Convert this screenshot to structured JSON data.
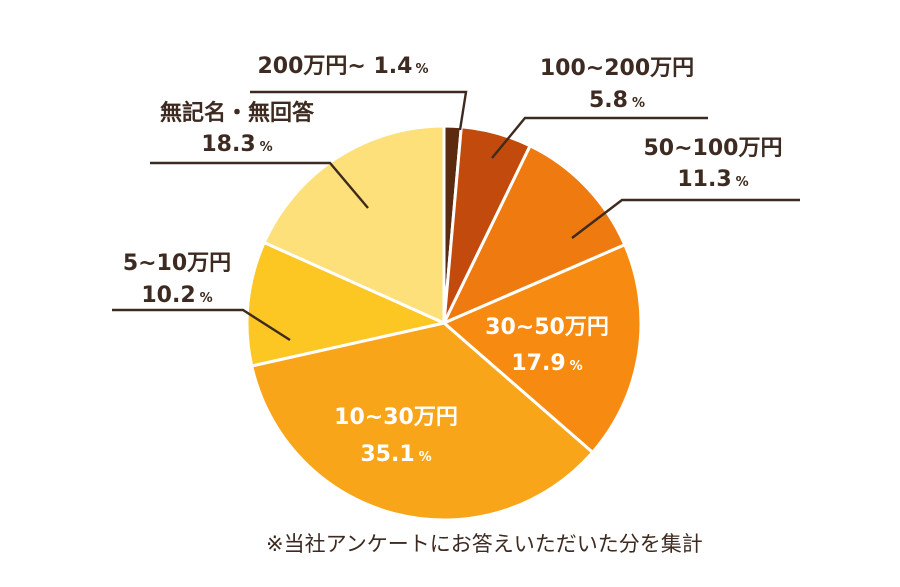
{
  "chart_data": {
    "type": "pie",
    "unit": "%",
    "slices": [
      {
        "label": "200万円~",
        "value": 1.4,
        "display": "1.4",
        "color": "#5c2a0e"
      },
      {
        "label": "100~200万円",
        "value": 5.8,
        "display": "5.8",
        "color": "#c24a0c"
      },
      {
        "label": "50~100万円",
        "value": 11.3,
        "display": "11.3",
        "color": "#ef7a10"
      },
      {
        "label": "30~50万円",
        "value": 17.9,
        "display": "17.9",
        "color": "#f78b12"
      },
      {
        "label": "10~30万円",
        "value": 35.1,
        "display": "35.1",
        "color": "#f9a51a"
      },
      {
        "label": "5~10万円",
        "value": 10.2,
        "display": "10.2",
        "color": "#fcc623"
      },
      {
        "label": "無記名・無回答",
        "value": 18.3,
        "display": "18.3",
        "color": "#fde07a"
      }
    ]
  },
  "colors": {
    "text_dark": "#3d2a20",
    "text_white": "#ffffff",
    "leader": "#3d2a20",
    "slice_border": "#ffffff"
  },
  "footnote": "※当社アンケートにお答えいただいた分を集計"
}
